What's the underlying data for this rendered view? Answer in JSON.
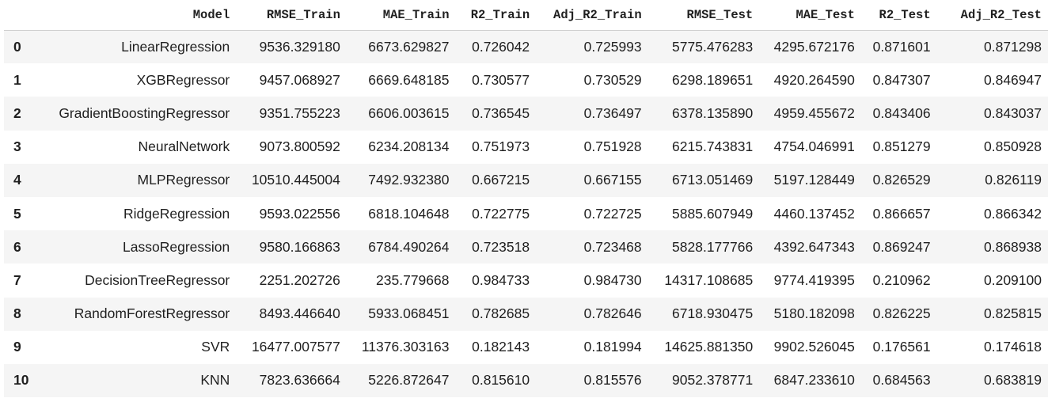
{
  "table": {
    "columns": [
      "",
      "Model",
      "RMSE_Train",
      "MAE_Train",
      "R2_Train",
      "Adj_R2_Train",
      "RMSE_Test",
      "MAE_Test",
      "R2_Test",
      "Adj_R2_Test"
    ],
    "rows": [
      [
        "0",
        "LinearRegression",
        "9536.329180",
        "6673.629827",
        "0.726042",
        "0.725993",
        "5775.476283",
        "4295.672176",
        "0.871601",
        "0.871298"
      ],
      [
        "1",
        "XGBRegressor",
        "9457.068927",
        "6669.648185",
        "0.730577",
        "0.730529",
        "6298.189651",
        "4920.264590",
        "0.847307",
        "0.846947"
      ],
      [
        "2",
        "GradientBoostingRegressor",
        "9351.755223",
        "6606.003615",
        "0.736545",
        "0.736497",
        "6378.135890",
        "4959.455672",
        "0.843406",
        "0.843037"
      ],
      [
        "3",
        "NeuralNetwork",
        "9073.800592",
        "6234.208134",
        "0.751973",
        "0.751928",
        "6215.743831",
        "4754.046991",
        "0.851279",
        "0.850928"
      ],
      [
        "4",
        "MLPRegressor",
        "10510.445004",
        "7492.932380",
        "0.667215",
        "0.667155",
        "6713.051469",
        "5197.128449",
        "0.826529",
        "0.826119"
      ],
      [
        "5",
        "RidgeRegression",
        "9593.022556",
        "6818.104648",
        "0.722775",
        "0.722725",
        "5885.607949",
        "4460.137452",
        "0.866657",
        "0.866342"
      ],
      [
        "6",
        "LassoRegression",
        "9580.166863",
        "6784.490264",
        "0.723518",
        "0.723468",
        "5828.177766",
        "4392.647343",
        "0.869247",
        "0.868938"
      ],
      [
        "7",
        "DecisionTreeRegressor",
        "2251.202726",
        "235.779668",
        "0.984733",
        "0.984730",
        "14317.108685",
        "9774.419395",
        "0.210962",
        "0.209100"
      ],
      [
        "8",
        "RandomForestRegressor",
        "8493.446640",
        "5933.068451",
        "0.782685",
        "0.782646",
        "6718.930475",
        "5180.182098",
        "0.826225",
        "0.825815"
      ],
      [
        "9",
        "SVR",
        "16477.007577",
        "11376.303163",
        "0.182143",
        "0.181994",
        "14625.881350",
        "9902.526045",
        "0.176561",
        "0.174618"
      ],
      [
        "10",
        "KNN",
        "7823.636664",
        "5226.872647",
        "0.815610",
        "0.815576",
        "9052.378771",
        "6847.233610",
        "0.684563",
        "0.683819"
      ]
    ]
  },
  "colors": {
    "striped_row": "#f5f5f5",
    "plain_row": "#ffffff",
    "text": "#1f1f1f",
    "header_rule": "#d0d0d0"
  }
}
